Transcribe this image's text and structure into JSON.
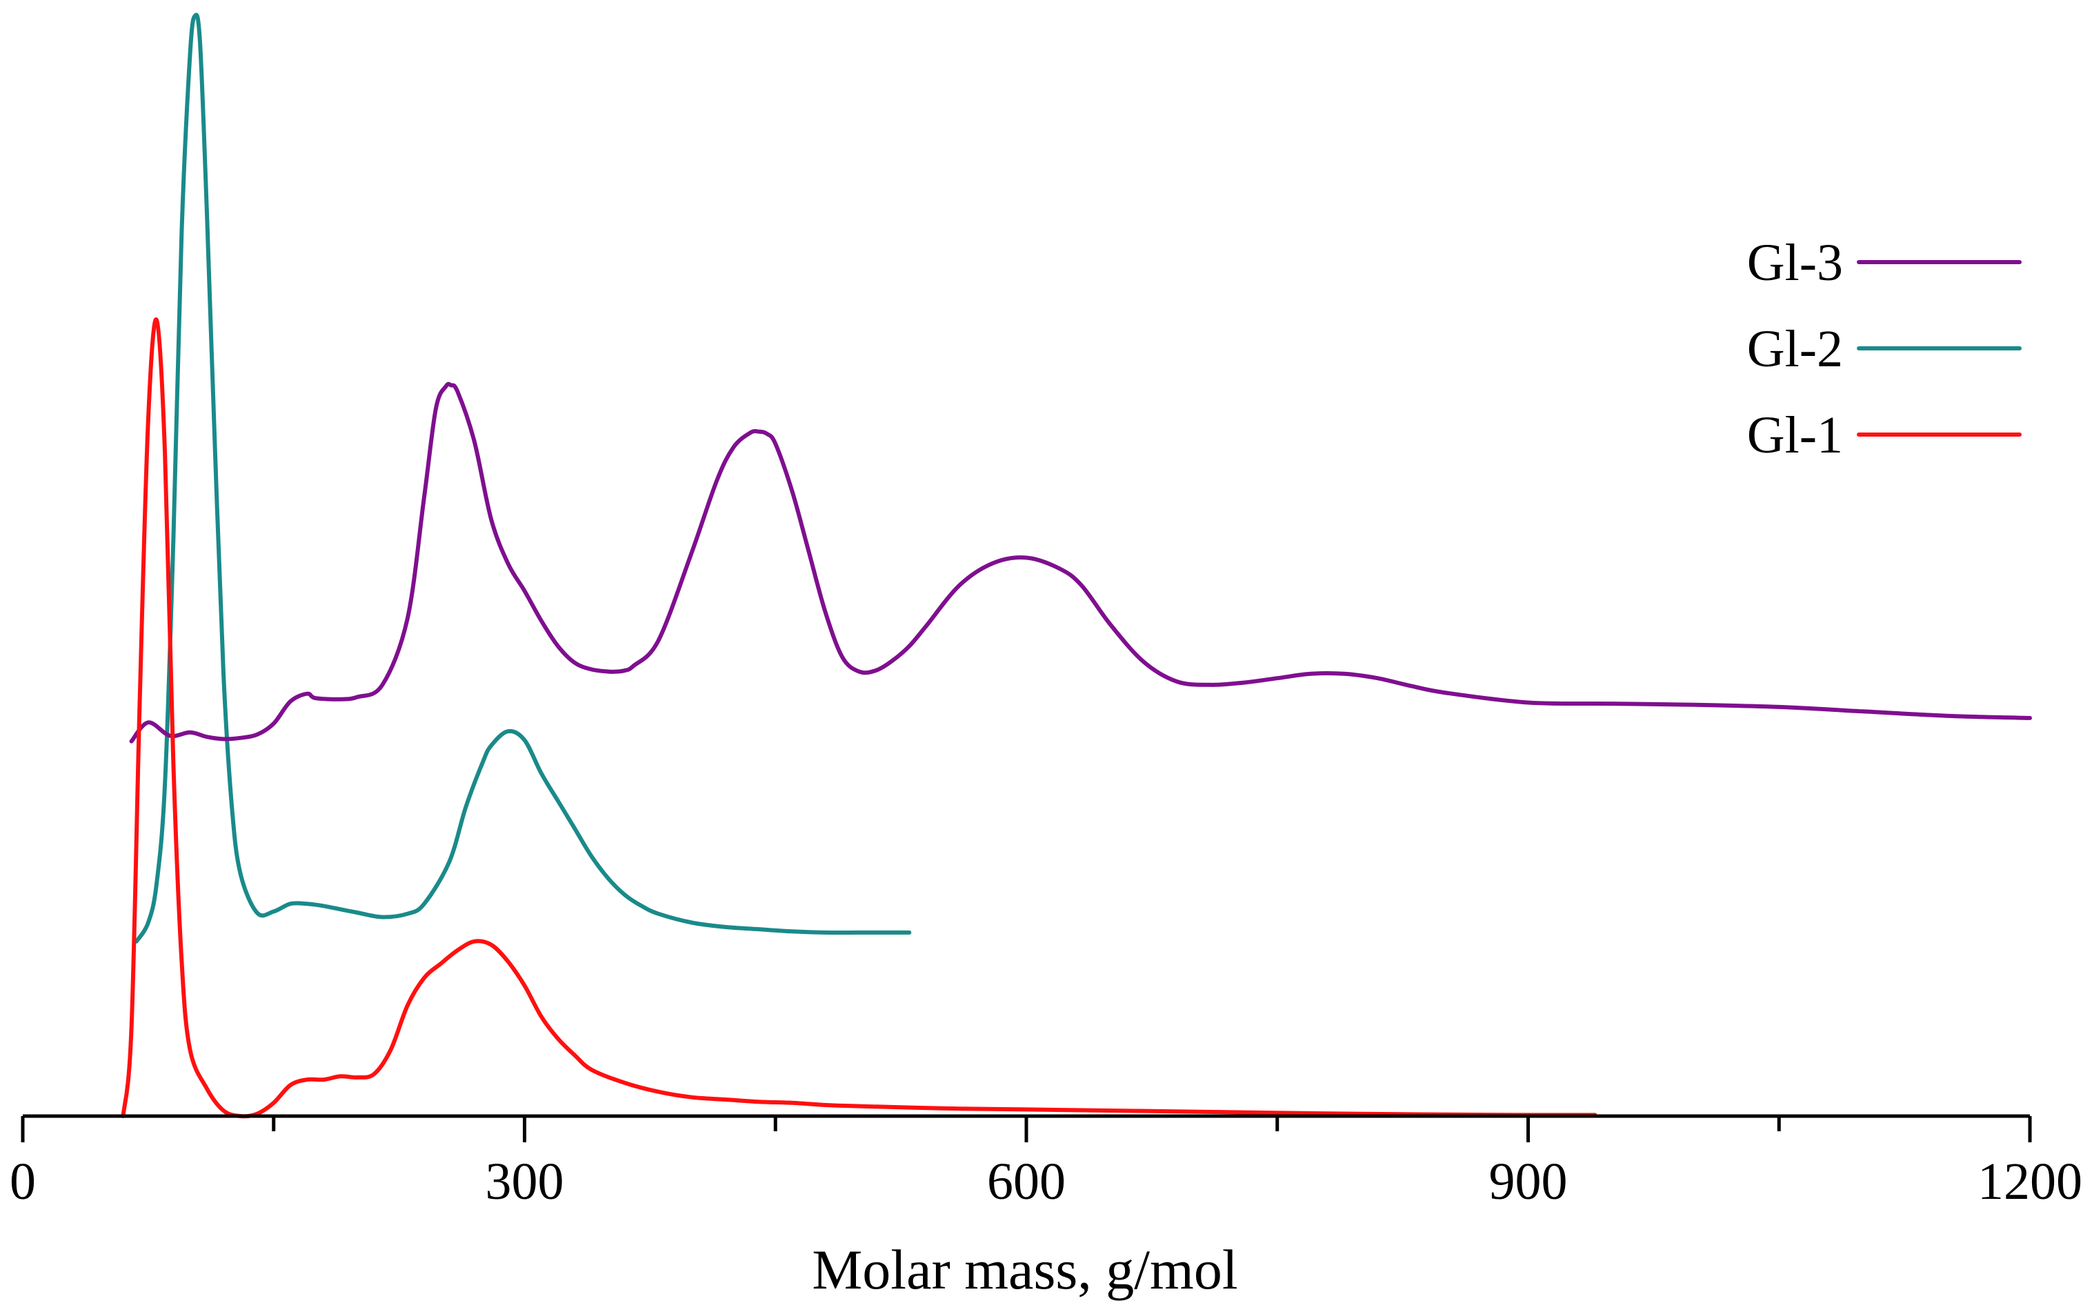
{
  "chart_data": {
    "type": "line",
    "title": "",
    "xlabel": "Molar mass, g/mol",
    "ylabel": "",
    "xlim": [
      0,
      1200
    ],
    "ylim": [
      0,
      1.0
    ],
    "x_ticks": [
      0,
      300,
      600,
      900,
      1200
    ],
    "x_tick_labels": [
      "0",
      "300",
      "600",
      "900",
      "1200"
    ],
    "x_minor_ticks": [
      150,
      450,
      750,
      1050
    ],
    "grid": false,
    "legend_position": "top-right",
    "series": [
      {
        "name": "Gl-3",
        "color": "#7f0f8f",
        "x": [
          65,
          75,
          88,
          100,
          110,
          120,
          130,
          140,
          150,
          160,
          170,
          175,
          190,
          200,
          215,
          230,
          240,
          247,
          253,
          256,
          260,
          270,
          280,
          290,
          300,
          310,
          320,
          330,
          340,
          350,
          355,
          360,
          365,
          380,
          400,
          415,
          425,
          435,
          440,
          445,
          450,
          460,
          470,
          480,
          490,
          500,
          510,
          520,
          530,
          540,
          560,
          580,
          600,
          620,
          633,
          650,
          670,
          690,
          710,
          730,
          750,
          770,
          790,
          810,
          830,
          850,
          900,
          950,
          1000,
          1050,
          1100,
          1150,
          1200
        ],
        "values": [
          0.339,
          0.356,
          0.344,
          0.347,
          0.343,
          0.341,
          0.342,
          0.345,
          0.355,
          0.375,
          0.382,
          0.378,
          0.377,
          0.379,
          0.39,
          0.45,
          0.56,
          0.64,
          0.66,
          0.661,
          0.655,
          0.61,
          0.54,
          0.5,
          0.475,
          0.448,
          0.425,
          0.41,
          0.404,
          0.402,
          0.402,
          0.403,
          0.407,
          0.43,
          0.51,
          0.575,
          0.605,
          0.618,
          0.619,
          0.617,
          0.608,
          0.565,
          0.51,
          0.455,
          0.415,
          0.402,
          0.403,
          0.412,
          0.425,
          0.443,
          0.48,
          0.5,
          0.505,
          0.495,
          0.48,
          0.445,
          0.411,
          0.393,
          0.39,
          0.392,
          0.396,
          0.4,
          0.4,
          0.396,
          0.389,
          0.383,
          0.374,
          0.373,
          0.372,
          0.37,
          0.366,
          0.362,
          0.36
        ]
      },
      {
        "name": "Gl-2",
        "color": "#1a8a8a",
        "x": [
          68,
          75,
          80,
          85,
          90,
          95,
          100,
          103,
          106,
          110,
          115,
          120,
          125,
          130,
          140,
          150,
          160,
          170,
          180,
          200,
          215,
          230,
          240,
          255,
          265,
          275,
          280,
          290,
          300,
          310,
          320,
          330,
          340,
          350,
          360,
          370,
          380,
          400,
          420,
          440,
          460,
          480,
          500,
          520,
          530
        ],
        "values": [
          0.158,
          0.175,
          0.21,
          0.3,
          0.52,
          0.8,
          0.96,
          0.995,
          0.97,
          0.82,
          0.6,
          0.4,
          0.28,
          0.22,
          0.184,
          0.185,
          0.192,
          0.192,
          0.19,
          0.184,
          0.18,
          0.183,
          0.192,
          0.23,
          0.28,
          0.32,
          0.335,
          0.348,
          0.34,
          0.31,
          0.285,
          0.26,
          0.235,
          0.215,
          0.2,
          0.19,
          0.183,
          0.175,
          0.171,
          0.169,
          0.167,
          0.166,
          0.166,
          0.166,
          0.166
        ]
      },
      {
        "name": "Gl-1",
        "color": "#ff1010",
        "x": [
          60,
          65,
          70,
          75,
          80,
          85,
          90,
          95,
          100,
          110,
          120,
          130,
          140,
          150,
          160,
          170,
          180,
          190,
          200,
          210,
          220,
          230,
          240,
          250,
          260,
          270,
          280,
          290,
          300,
          310,
          320,
          330,
          340,
          360,
          380,
          400,
          420,
          440,
          460,
          480,
          500,
          550,
          600,
          700,
          800,
          900,
          940
        ],
        "values": [
          0.0,
          0.08,
          0.38,
          0.63,
          0.72,
          0.6,
          0.32,
          0.14,
          0.06,
          0.025,
          0.005,
          0.0,
          0.002,
          0.012,
          0.028,
          0.033,
          0.033,
          0.036,
          0.035,
          0.038,
          0.06,
          0.1,
          0.125,
          0.138,
          0.15,
          0.158,
          0.155,
          0.14,
          0.118,
          0.09,
          0.07,
          0.055,
          0.042,
          0.03,
          0.022,
          0.017,
          0.015,
          0.013,
          0.012,
          0.01,
          0.009,
          0.007,
          0.006,
          0.004,
          0.002,
          0.001,
          0.001
        ]
      }
    ]
  }
}
